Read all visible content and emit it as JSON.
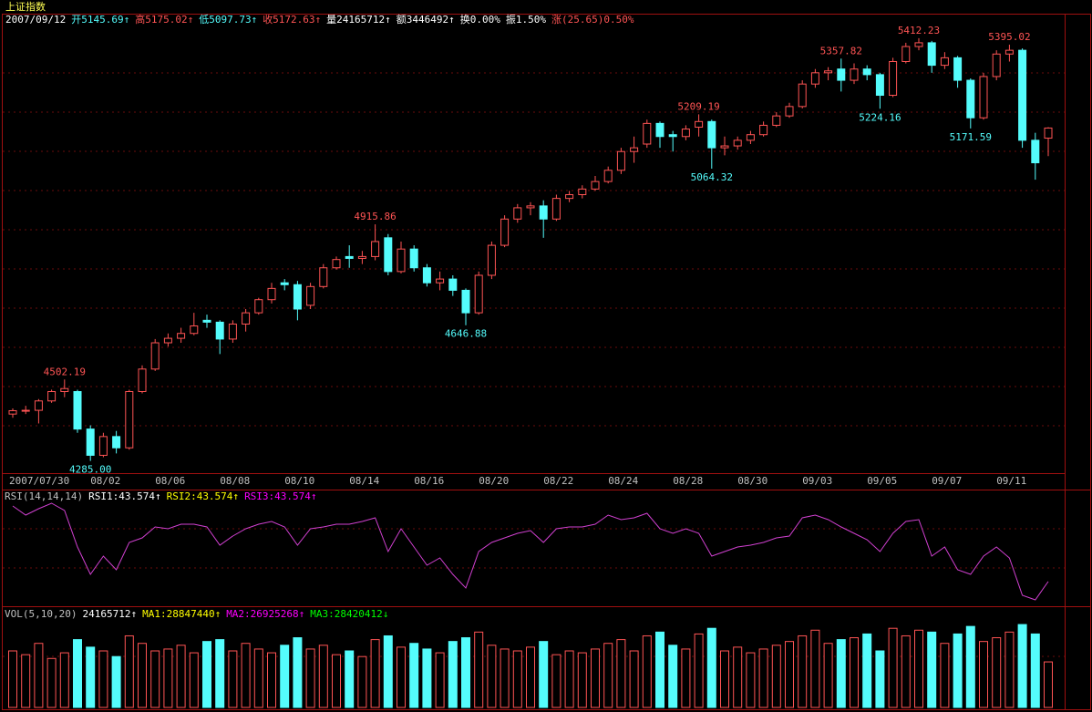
{
  "chart_data": [
    {
      "type": "candlestick",
      "title": "上证指数",
      "info": [
        {
          "text": "2007/09/12",
          "color": "#ffffff"
        },
        {
          "text": "开5145.69↑",
          "color": "#54fcfc"
        },
        {
          "text": "高5175.02↑",
          "color": "#ff5454"
        },
        {
          "text": "低5097.73↑",
          "color": "#54fcfc"
        },
        {
          "text": "收5172.63↑",
          "color": "#ff5454"
        },
        {
          "text": "量24165712↑",
          "color": "#ffffff"
        },
        {
          "text": "额3446492↑",
          "color": "#ffffff"
        },
        {
          "text": "换0.00%",
          "color": "#ffffff"
        },
        {
          "text": "振1.50%",
          "color": "#ffffff"
        },
        {
          "text": "涨(25.65)0.50%",
          "color": "#ff5454"
        }
      ],
      "categories": [
        "2007/07/30",
        null,
        null,
        null,
        null,
        null,
        "08/02",
        null,
        null,
        null,
        null,
        "08/06",
        null,
        null,
        null,
        null,
        "08/08",
        null,
        null,
        null,
        null,
        "08/10",
        null,
        null,
        null,
        null,
        "08/14",
        null,
        null,
        null,
        null,
        "08/16",
        null,
        null,
        null,
        null,
        "08/20",
        null,
        null,
        null,
        null,
        "08/22",
        null,
        null,
        null,
        null,
        "08/24",
        null,
        null,
        null,
        null,
        "08/28",
        null,
        null,
        null,
        null,
        "08/30",
        null,
        null,
        null,
        null,
        "09/03",
        null,
        null,
        null,
        null,
        "09/05",
        null,
        null,
        null,
        null,
        "09/07",
        null,
        null,
        null,
        null,
        "09/11",
        null,
        null,
        null,
        null
      ],
      "open": [
        4410,
        4419,
        4420,
        4445,
        4470,
        4470,
        4370,
        4300,
        4350,
        4320,
        4470,
        4530,
        4600,
        4612,
        4625,
        4660,
        4655,
        4610,
        4650,
        4680,
        4715,
        4760,
        4755,
        4700,
        4750,
        4800,
        4830,
        4825,
        4830,
        4880,
        4790,
        4850,
        4800,
        4760,
        4770,
        4740,
        4680,
        4780,
        4860,
        4930,
        4960,
        4965,
        4930,
        4985,
        4995,
        5010,
        5030,
        5060,
        5110,
        5130,
        5185,
        5155,
        5150,
        5175,
        5190,
        5120,
        5125,
        5140,
        5155,
        5180,
        5205,
        5230,
        5290,
        5320,
        5330,
        5300,
        5330,
        5315,
        5260,
        5350,
        5390,
        5400,
        5340,
        5360,
        5300,
        5200,
        5310,
        5370,
        5380,
        5140,
        5145.69
      ],
      "high": [
        4425,
        4432,
        4450,
        4475,
        4502.19,
        4475,
        4380,
        4360,
        4365,
        4475,
        4540,
        4610,
        4625,
        4640,
        4680,
        4675,
        4660,
        4660,
        4690,
        4720,
        4760,
        4770,
        4765,
        4760,
        4810,
        4830,
        4860,
        4845,
        4915.86,
        4890,
        4870,
        4860,
        4810,
        4790,
        4780,
        4745,
        4790,
        4870,
        4940,
        4970,
        4975,
        4980,
        4995,
        5005,
        5020,
        5045,
        5070,
        5120,
        5150,
        5195,
        5190,
        5165,
        5180,
        5209.19,
        5195,
        5150,
        5150,
        5165,
        5190,
        5215,
        5240,
        5300,
        5330,
        5335,
        5357.82,
        5345,
        5340,
        5320,
        5360,
        5400,
        5412.23,
        5405,
        5375,
        5365,
        5305,
        5320,
        5380,
        5395.02,
        5385,
        5160,
        5175.02
      ],
      "low": [
        4400,
        4410,
        4385,
        4440,
        4455,
        4360,
        4285,
        4295,
        4305,
        4315,
        4465,
        4525,
        4590,
        4600,
        4620,
        4640,
        4570,
        4600,
        4630,
        4675,
        4705,
        4740,
        4660,
        4690,
        4745,
        4795,
        4800,
        4810,
        4820,
        4780,
        4785,
        4790,
        4750,
        4740,
        4725,
        4646.88,
        4675,
        4770,
        4855,
        4920,
        4940,
        4880,
        4925,
        4975,
        4985,
        5005,
        5025,
        5050,
        5080,
        5120,
        5120,
        5110,
        5140,
        5150,
        5064.32,
        5100,
        5115,
        5130,
        5150,
        5175,
        5200,
        5225,
        5280,
        5300,
        5270,
        5290,
        5300,
        5224.16,
        5255,
        5345,
        5380,
        5320,
        5330,
        5280,
        5171.59,
        5195,
        5300,
        5350,
        5120,
        5035,
        5097.73
      ],
      "close": [
        4419,
        4420,
        4445,
        4470,
        4478,
        4370,
        4300,
        4350,
        4320,
        4470,
        4530,
        4600,
        4612,
        4625,
        4645,
        4655,
        4610,
        4650,
        4680,
        4715,
        4745,
        4755,
        4690,
        4750,
        4800,
        4822,
        4825,
        4830,
        4870,
        4790,
        4850,
        4800,
        4760,
        4770,
        4740,
        4680,
        4780,
        4860,
        4930,
        4960,
        4965,
        4930,
        4985,
        4995,
        5010,
        5030,
        5060,
        5110,
        5120,
        5185,
        5150,
        5150,
        5170,
        5190,
        5120,
        5125,
        5140,
        5155,
        5180,
        5205,
        5230,
        5290,
        5320,
        5325,
        5300,
        5330,
        5315,
        5260,
        5350,
        5390,
        5400,
        5340,
        5360,
        5300,
        5200,
        5310,
        5370,
        5380,
        5140,
        5080,
        5172.63
      ],
      "annotations": [
        "4502.19",
        "4285.00",
        "4915.86",
        "4646.88",
        "5209.19",
        "5064.32",
        "5357.82",
        "5224.16",
        "5412.23",
        "5171.59",
        "5395.02"
      ],
      "up_color": "#ff5454",
      "down_color": "#54fcfc",
      "ylim": [
        4250,
        5446
      ]
    },
    {
      "type": "line",
      "header": [
        {
          "text": "RSI(14,14,14)",
          "color": "#c0c0c0"
        },
        {
          "text": "RSI1:43.574↑",
          "color": "#ffffff"
        },
        {
          "text": "RSI2:43.574↑",
          "color": "#ffff00"
        },
        {
          "text": "RSI3:43.574↑",
          "color": "#ff00ff"
        }
      ],
      "series": [
        {
          "name": "RSI1",
          "color": "#d040d0",
          "values": [
            85,
            80,
            83.5,
            86.5,
            82.5,
            62.5,
            47.5,
            57.5,
            50,
            65,
            67.5,
            73.5,
            72.5,
            75,
            75,
            73.5,
            63.5,
            68.5,
            72.5,
            75,
            76.5,
            73.5,
            63.5,
            72.5,
            73.5,
            75,
            75,
            76.5,
            78.5,
            60,
            72.5,
            62.5,
            52.5,
            56.5,
            47.5,
            40,
            60,
            65,
            67.5,
            70,
            71.5,
            65,
            72.5,
            73.5,
            73.5,
            75,
            80,
            77.5,
            78.5,
            81,
            72.5,
            70,
            72.5,
            70,
            57.5,
            60,
            62.5,
            63.5,
            65,
            67.5,
            68.5,
            78.5,
            80,
            77.5,
            73.5,
            70,
            66.5,
            60,
            70,
            76.5,
            77.5,
            57.5,
            62.5,
            50,
            47.5,
            57.5,
            62.5,
            56.5,
            36,
            33.5,
            43.574
          ]
        }
      ],
      "ylim": [
        30,
        90
      ]
    },
    {
      "type": "bar",
      "header": [
        {
          "text": "VOL(5,10,20)",
          "color": "#c0c0c0"
        },
        {
          "text": "24165712↑",
          "color": "#ffffff"
        },
        {
          "text": "MA1:28847440↑",
          "color": "#ffff00"
        },
        {
          "text": "MA2:26925268↑",
          "color": "#ff00ff"
        },
        {
          "text": "MA3:28420412↓",
          "color": "#00ff00"
        }
      ],
      "values": [
        30000000,
        28000000,
        34000000,
        26000000,
        29000000,
        36000000,
        32000000,
        30000000,
        27000000,
        38000000,
        34000000,
        30000000,
        31000000,
        33000000,
        29000000,
        35000000,
        36000000,
        30000000,
        34000000,
        31000000,
        29000000,
        33000000,
        37000000,
        31000000,
        33000000,
        28000000,
        30000000,
        27000000,
        36000000,
        38000000,
        32000000,
        34000000,
        31000000,
        29000000,
        35000000,
        37000000,
        40000000,
        33000000,
        31000000,
        30000000,
        32000000,
        35000000,
        28000000,
        30000000,
        29000000,
        31000000,
        34000000,
        36000000,
        30000000,
        38000000,
        40000000,
        33000000,
        31000000,
        39000000,
        42000000,
        30000000,
        32000000,
        29000000,
        31000000,
        33000000,
        35000000,
        38000000,
        41000000,
        34000000,
        36000000,
        37000000,
        39000000,
        30000000,
        42000000,
        38000000,
        41000000,
        40000000,
        34000000,
        39000000,
        43000000,
        35000000,
        37000000,
        40000000,
        44000000,
        39000000,
        24165712
      ],
      "ylim": [
        0,
        45000000
      ]
    }
  ]
}
